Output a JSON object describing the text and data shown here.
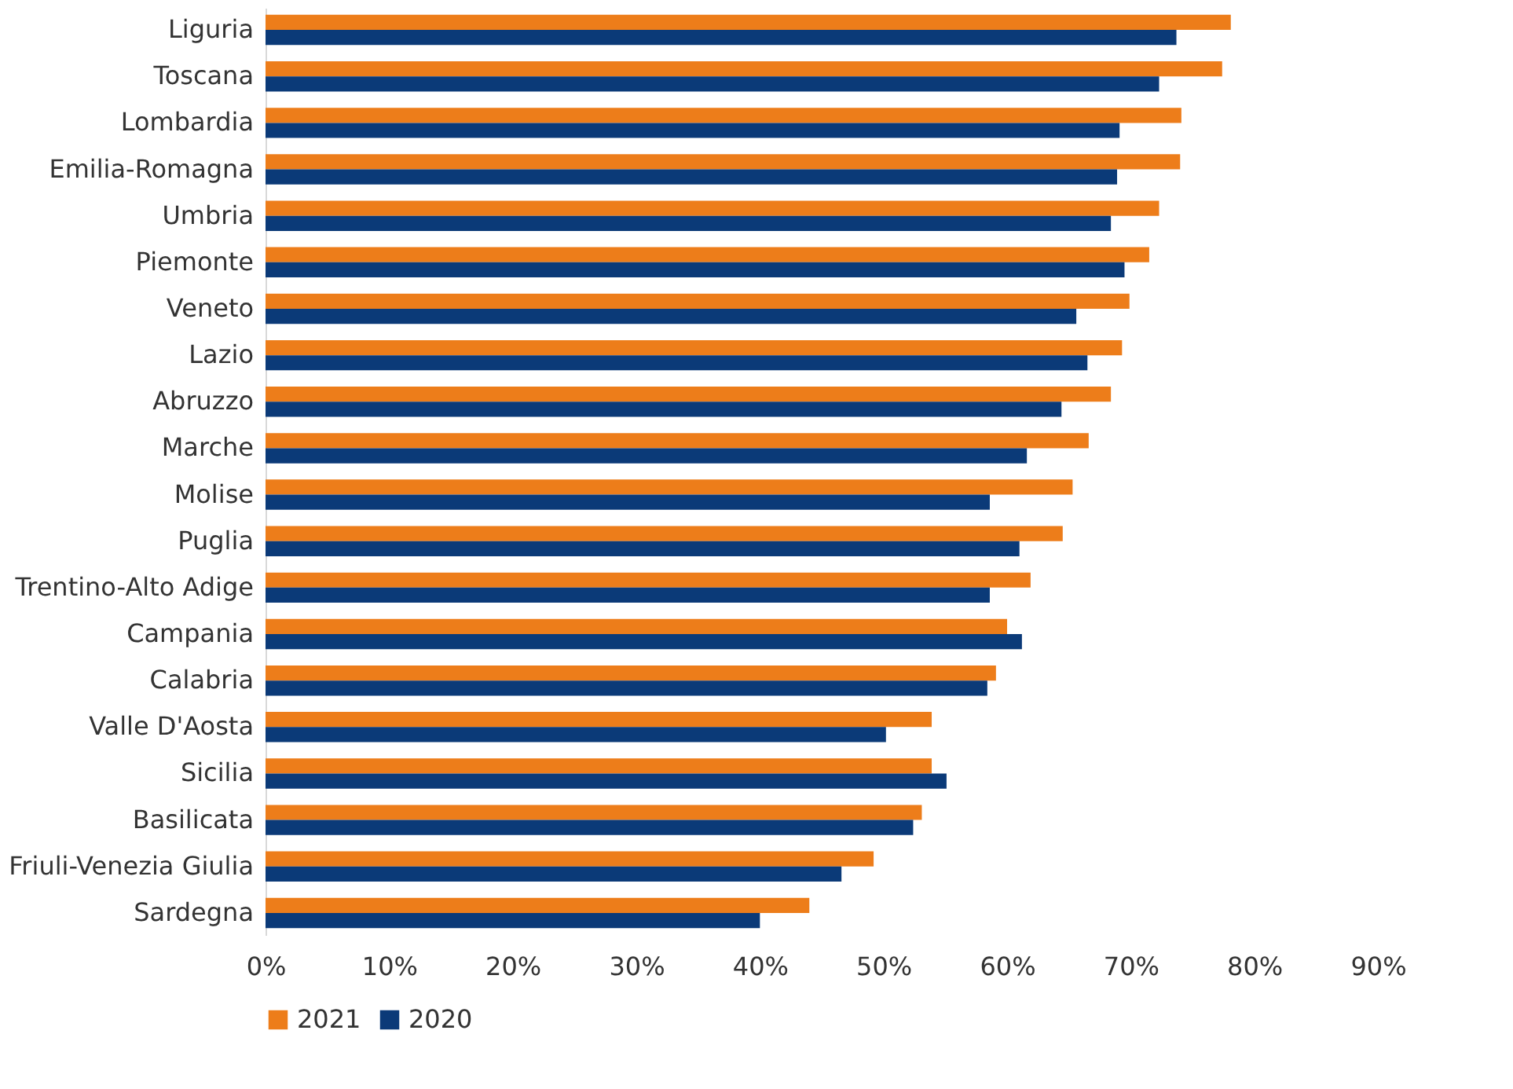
{
  "chart_data": {
    "type": "bar",
    "orientation": "horizontal",
    "categories": [
      "Liguria",
      "Toscana",
      "Lombardia",
      "Emilia-Romagna",
      "Umbria",
      "Piemonte",
      "Veneto",
      "Lazio",
      "Abruzzo",
      "Marche",
      "Molise",
      "Puglia",
      "Trentino-Alto Adige",
      "Campania",
      "Calabria",
      "Valle D'Aosta",
      "Sicilia",
      "Basilicata",
      "Friuli-Venezia Giulia",
      "Sardegna"
    ],
    "series": [
      {
        "name": "2021",
        "color": "#ed7d1a",
        "values": [
          78.1,
          77.4,
          74.1,
          74.0,
          72.3,
          71.5,
          69.9,
          69.3,
          68.4,
          66.6,
          65.3,
          64.5,
          61.9,
          60.0,
          59.1,
          53.9,
          53.9,
          53.1,
          49.2,
          44.0
        ]
      },
      {
        "name": "2020",
        "color": "#0b3a78",
        "values": [
          73.7,
          72.3,
          69.1,
          68.9,
          68.4,
          69.5,
          65.6,
          66.5,
          64.4,
          61.6,
          58.6,
          61.0,
          58.6,
          61.2,
          58.4,
          50.2,
          55.1,
          52.4,
          46.6,
          40.0
        ]
      }
    ],
    "xlim": [
      0,
      90
    ],
    "xticks": [
      {
        "value": 0,
        "label": "0%"
      },
      {
        "value": 10,
        "label": "10%"
      },
      {
        "value": 20,
        "label": "20%"
      },
      {
        "value": 30,
        "label": "30%"
      },
      {
        "value": 40,
        "label": "40%"
      },
      {
        "value": 50,
        "label": "50%"
      },
      {
        "value": 60,
        "label": "60%"
      },
      {
        "value": 70,
        "label": "70%"
      },
      {
        "value": 80,
        "label": "80%"
      },
      {
        "value": 90,
        "label": "90%"
      }
    ],
    "grid": false,
    "legend": "bottom"
  }
}
